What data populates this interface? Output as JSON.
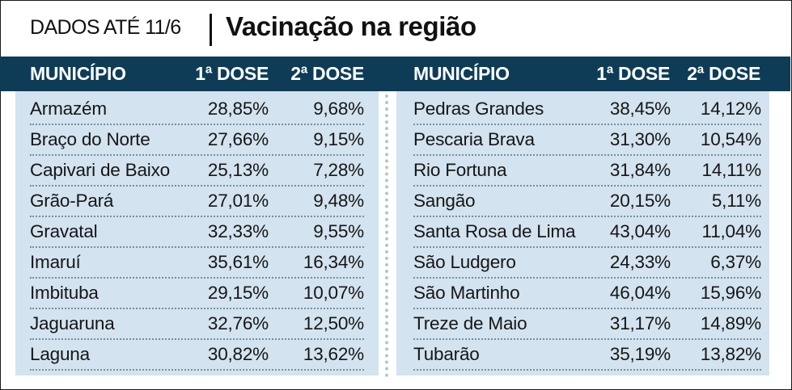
{
  "header": {
    "date_label": "DADOS ATÉ 11/6",
    "title": "Vacinação na região"
  },
  "columns": {
    "municipio": "MUNICÍPIO",
    "dose1": "1ª DOSE",
    "dose2": "2ª DOSE"
  },
  "left_rows": [
    {
      "municipio": "Armazém",
      "dose1": "28,85%",
      "dose2": "9,68%"
    },
    {
      "municipio": "Braço do Norte",
      "dose1": "27,66%",
      "dose2": "9,15%"
    },
    {
      "municipio": "Capivari de Baixo",
      "dose1": "25,13%",
      "dose2": "7,28%"
    },
    {
      "municipio": "Grão-Pará",
      "dose1": "27,01%",
      "dose2": "9,48%"
    },
    {
      "municipio": "Gravatal",
      "dose1": "32,33%",
      "dose2": "9,55%"
    },
    {
      "municipio": "Imaruí",
      "dose1": "35,61%",
      "dose2": "16,34%"
    },
    {
      "municipio": "Imbituba",
      "dose1": "29,15%",
      "dose2": "10,07%"
    },
    {
      "municipio": "Jaguaruna",
      "dose1": "32,76%",
      "dose2": "12,50%"
    },
    {
      "municipio": "Laguna",
      "dose1": "30,82%",
      "dose2": "13,62%"
    }
  ],
  "right_rows": [
    {
      "municipio": "Pedras Grandes",
      "dose1": "38,45%",
      "dose2": "14,12%"
    },
    {
      "municipio": "Pescaria Brava",
      "dose1": "31,30%",
      "dose2": "10,54%"
    },
    {
      "municipio": "Rio Fortuna",
      "dose1": "31,84%",
      "dose2": "14,11%"
    },
    {
      "municipio": "Sangão",
      "dose1": "20,15%",
      "dose2": "5,11%"
    },
    {
      "municipio": "Santa Rosa de Lima",
      "dose1": "43,04%",
      "dose2": "11,04%"
    },
    {
      "municipio": "São Ludgero",
      "dose1": "24,33%",
      "dose2": "6,37%"
    },
    {
      "municipio": "São Martinho",
      "dose1": "46,04%",
      "dose2": "15,96%"
    },
    {
      "municipio": "Treze de Maio",
      "dose1": "31,17%",
      "dose2": "14,89%"
    },
    {
      "municipio": "Tubarão",
      "dose1": "35,19%",
      "dose2": "13,82%"
    }
  ],
  "colors": {
    "header_bar": "#0e3c57",
    "panel_bg": "#d3e3ef",
    "text": "#161616"
  }
}
